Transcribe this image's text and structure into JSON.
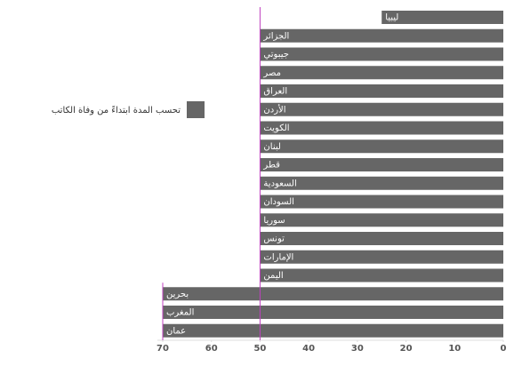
{
  "chart_data": {
    "type": "bar",
    "orientation": "horizontal",
    "x_reversed": true,
    "categories": [
      "ليبيا",
      "الجزائر",
      "جيبوتي",
      "مصر",
      "العراق",
      "الأردن",
      "الكويت",
      "لبنان",
      "قطر",
      "السعودية",
      "السودان",
      "سوريا",
      "تونس",
      "الإمارات",
      "اليمن",
      "بحرين",
      "المغرب",
      "عمان"
    ],
    "series": [
      {
        "name": "تحسب المدة ابتداءً من وفاة الكاتب",
        "color": "#666666",
        "values": [
          25,
          50,
          50,
          50,
          50,
          50,
          50,
          50,
          50,
          50,
          50,
          50,
          50,
          50,
          50,
          70,
          70,
          70
        ]
      }
    ],
    "xlim": [
      0,
      70
    ],
    "xticks": [
      0,
      10,
      20,
      30,
      40,
      50,
      60,
      70
    ],
    "reference_lines": [
      {
        "value": 50,
        "color": "#c040c0"
      },
      {
        "value": 70,
        "color": "#c040c0"
      }
    ],
    "legend": "left"
  }
}
